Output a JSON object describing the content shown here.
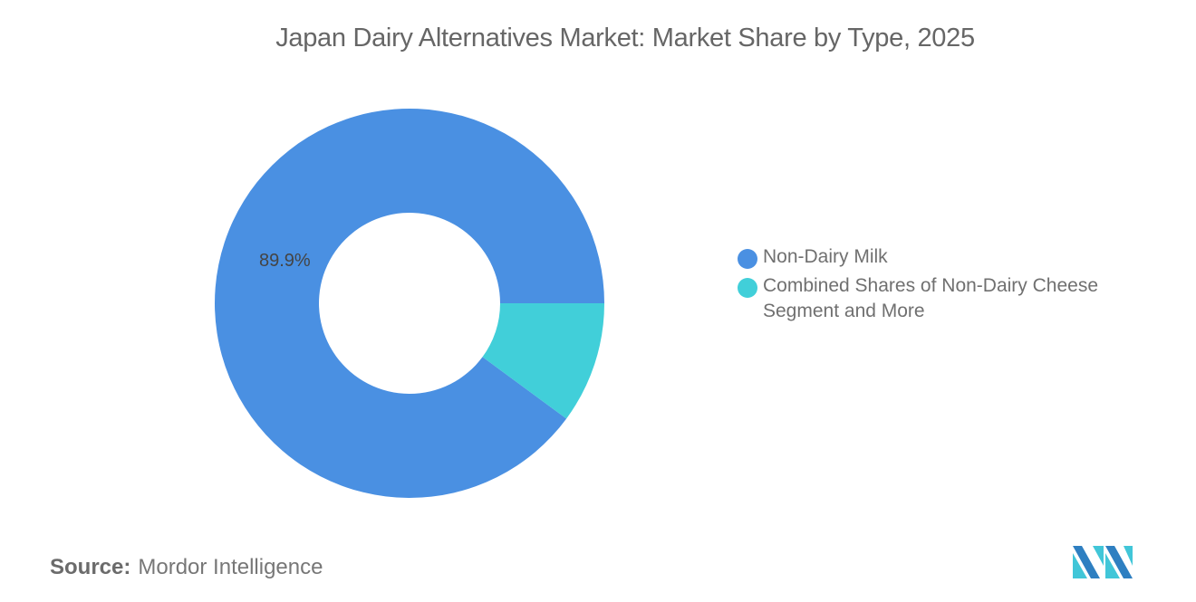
{
  "header": {
    "title": "Japan Dairy Alternatives Market: Market Share by Type, 2025"
  },
  "colors": {
    "non_dairy_milk": "#4A90E2",
    "combined": "#41CFD9",
    "logo_dark": "#2E7FC1",
    "logo_light": "#41C6D8"
  },
  "chart_data": {
    "type": "pie",
    "subtype": "donut",
    "title": "Japan Dairy Alternatives Market: Market Share by Type, 2025",
    "categories": [
      "Non-Dairy Milk",
      "Combined Shares of Non-Dairy Cheese Segment and More"
    ],
    "values": [
      89.9,
      10.1
    ],
    "labels": [
      "89.9%",
      ""
    ],
    "legend_position": "right"
  },
  "labels": {
    "slice_0": "89.9%"
  },
  "legend": {
    "items": [
      {
        "label": "Non-Dairy Milk",
        "color": "#4A90E2"
      },
      {
        "label": "Combined Shares of Non-Dairy Cheese Segment and More",
        "color": "#41CFD9"
      }
    ]
  },
  "footer": {
    "source_label": "Source:",
    "source_value": "Mordor Intelligence"
  }
}
